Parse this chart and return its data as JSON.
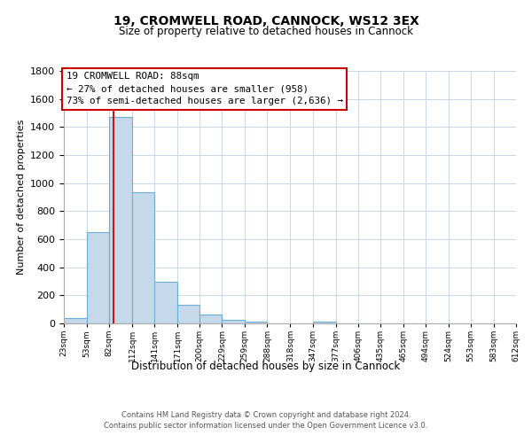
{
  "title1": "19, CROMWELL ROAD, CANNOCK, WS12 3EX",
  "title2": "Size of property relative to detached houses in Cannock",
  "xlabel": "Distribution of detached houses by size in Cannock",
  "ylabel": "Number of detached properties",
  "bin_edges": [
    23,
    53,
    82,
    112,
    141,
    171,
    200,
    229,
    259,
    288,
    318,
    347,
    377,
    406,
    435,
    465,
    494,
    524,
    553,
    583,
    612
  ],
  "bin_counts": [
    40,
    650,
    1470,
    935,
    295,
    130,
    65,
    25,
    10,
    0,
    0,
    15,
    0,
    0,
    0,
    0,
    0,
    0,
    0,
    0
  ],
  "property_size": 88,
  "bar_color": "#c6d9ea",
  "bar_edge_color": "#6aaed6",
  "vline_color": "#cc0000",
  "vline_x": 88,
  "annotation_title": "19 CROMWELL ROAD: 88sqm",
  "annotation_line1": "← 27% of detached houses are smaller (958)",
  "annotation_line2": "73% of semi-detached houses are larger (2,636) →",
  "annotation_box_color": "#ffffff",
  "annotation_box_edge": "#cc0000",
  "tick_labels": [
    "23sqm",
    "53sqm",
    "82sqm",
    "112sqm",
    "141sqm",
    "171sqm",
    "200sqm",
    "229sqm",
    "259sqm",
    "288sqm",
    "318sqm",
    "347sqm",
    "377sqm",
    "406sqm",
    "435sqm",
    "465sqm",
    "494sqm",
    "524sqm",
    "553sqm",
    "583sqm",
    "612sqm"
  ],
  "ylim": [
    0,
    1800
  ],
  "yticks": [
    0,
    200,
    400,
    600,
    800,
    1000,
    1200,
    1400,
    1600,
    1800
  ],
  "footer_line1": "Contains HM Land Registry data © Crown copyright and database right 2024.",
  "footer_line2": "Contains public sector information licensed under the Open Government Licence v3.0.",
  "background_color": "#ffffff",
  "grid_color": "#c8d8e8"
}
